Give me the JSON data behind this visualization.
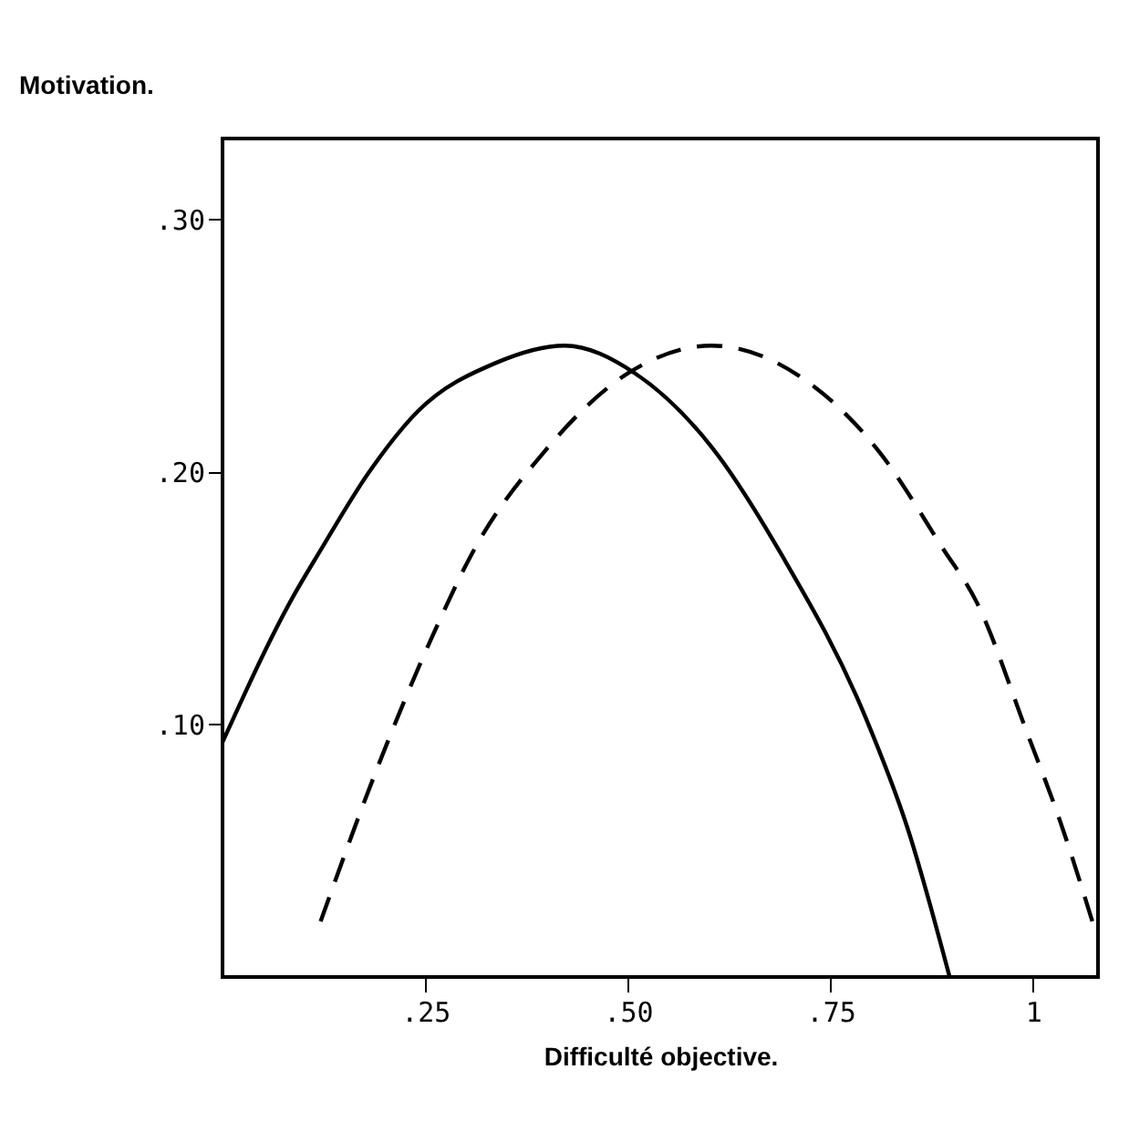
{
  "chart_data": {
    "type": "line",
    "ylabel": "Motivation.",
    "xlabel": "Difficulté objective.",
    "xlim": [
      0,
      1.08
    ],
    "ylim": [
      0,
      0.332
    ],
    "xticks": [
      {
        "value": 0.25,
        "label": ".25"
      },
      {
        "value": 0.5,
        "label": ".50"
      },
      {
        "value": 0.75,
        "label": ".75"
      },
      {
        "value": 1,
        "label": "1"
      }
    ],
    "yticks": [
      {
        "value": 0.1,
        "label": ".10"
      },
      {
        "value": 0.2,
        "label": ".20"
      },
      {
        "value": 0.3,
        "label": ".30"
      }
    ],
    "grid": false,
    "marker": "none",
    "series": [
      {
        "color": "#000000",
        "line_style": "solid",
        "x": [
          0,
          0.086,
          0.121,
          0.181,
          0.241,
          0.336,
          0.422,
          0.509,
          0.603,
          0.69,
          0.793,
          0.845,
          0.897
        ],
        "values": [
          0.093,
          0.15,
          0.169,
          0.2,
          0.224,
          0.243,
          0.25,
          0.239,
          0.21,
          0.167,
          0.103,
          0.059,
          0
        ]
      },
      {
        "color": "#000000",
        "line_style": "dashed",
        "x": [
          0.121,
          0.19,
          0.259,
          0.31,
          0.397,
          0.5,
          0.603,
          0.716,
          0.81,
          0.888,
          0.931,
          0.991,
          1.034,
          1.075
        ],
        "values": [
          0.022,
          0.082,
          0.135,
          0.169,
          0.208,
          0.239,
          0.25,
          0.237,
          0.208,
          0.17,
          0.148,
          0.098,
          0.061,
          0.02
        ]
      }
    ]
  }
}
